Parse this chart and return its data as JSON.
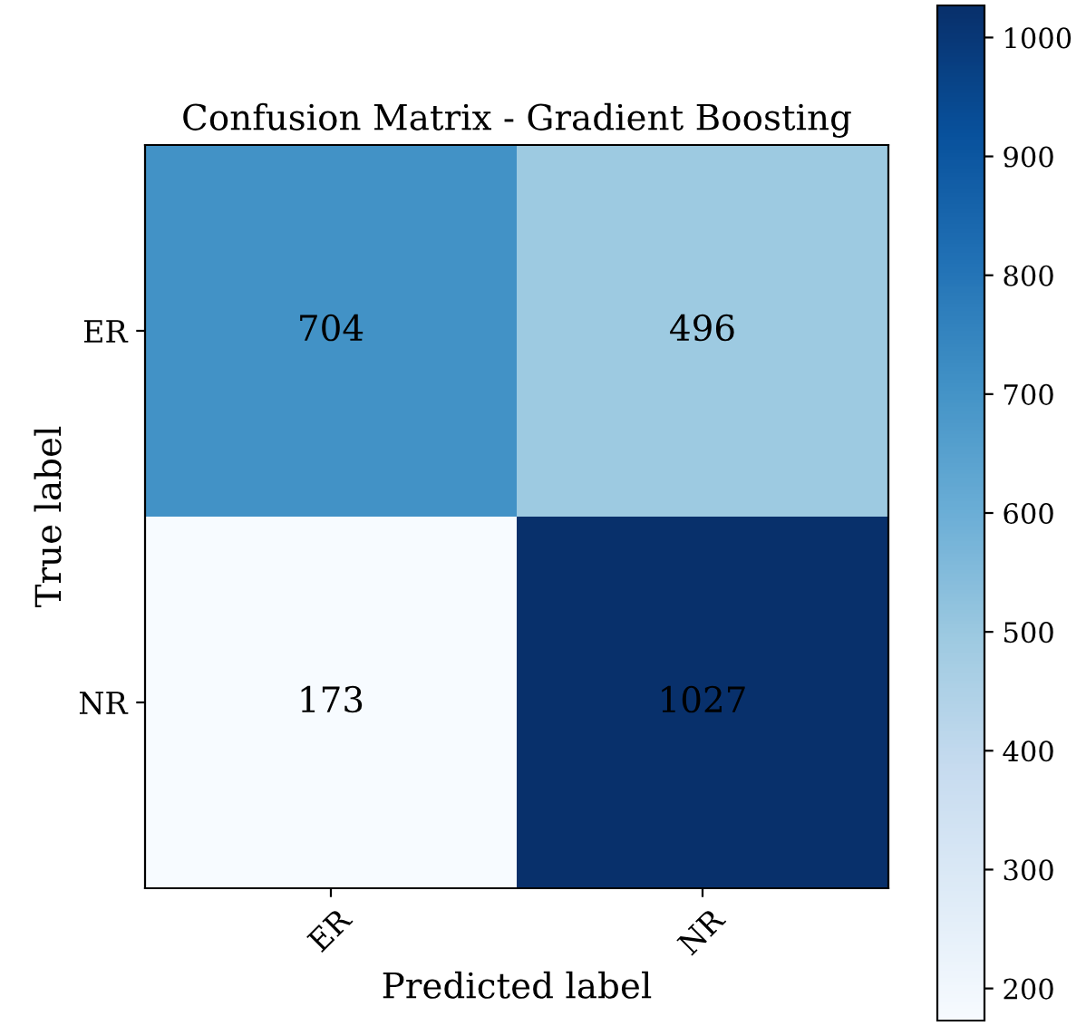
{
  "chart_data": {
    "type": "heatmap",
    "title": "Confusion Matrix - Gradient Boosting",
    "xlabel": "Predicted label",
    "ylabel": "True label",
    "categories": [
      "ER",
      "NR"
    ],
    "y_categories": [
      "ER",
      "NR"
    ],
    "cells": [
      [
        704,
        496
      ],
      [
        173,
        1027
      ]
    ],
    "data_labels": true,
    "clim": [
      173,
      1027
    ],
    "cticks": [
      200,
      300,
      400,
      500,
      600,
      700,
      800,
      900,
      1000
    ]
  }
}
